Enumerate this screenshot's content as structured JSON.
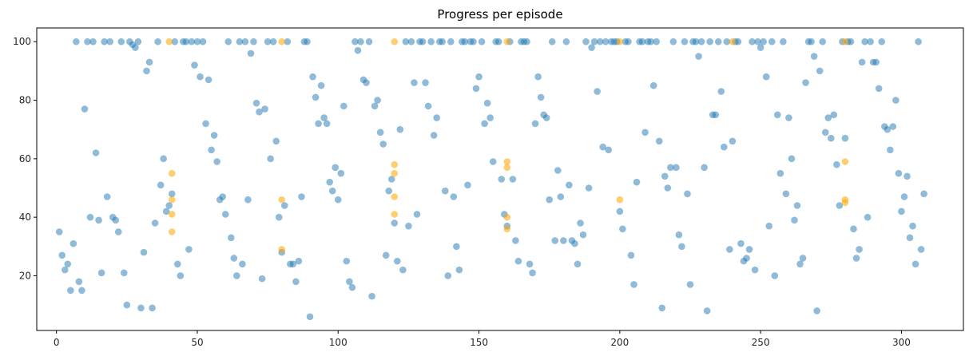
{
  "chart_data": {
    "type": "scatter",
    "title": "Progress per episode",
    "xlabel": "",
    "ylabel": "",
    "xlim": [
      -7,
      322
    ],
    "ylim": [
      1.3,
      104.7
    ],
    "xticks": [
      0,
      50,
      100,
      150,
      200,
      250,
      300
    ],
    "yticks": [
      20,
      40,
      60,
      80,
      100
    ],
    "grid": false,
    "legend": "none",
    "series": [
      {
        "color": "#1f77b4",
        "alpha": 0.5,
        "points": [
          [
            1,
            35
          ],
          [
            2,
            27
          ],
          [
            3,
            22
          ],
          [
            4,
            24
          ],
          [
            5,
            15
          ],
          [
            6,
            31
          ],
          [
            7,
            100
          ],
          [
            8,
            18
          ],
          [
            9,
            15
          ],
          [
            10,
            77
          ],
          [
            11,
            100
          ],
          [
            12,
            40
          ],
          [
            13,
            100
          ],
          [
            14,
            62
          ],
          [
            15,
            39
          ],
          [
            16,
            21
          ],
          [
            17,
            100
          ],
          [
            18,
            47
          ],
          [
            19,
            100
          ],
          [
            20,
            40
          ],
          [
            21,
            39
          ],
          [
            22,
            35
          ],
          [
            23,
            100
          ],
          [
            24,
            21
          ],
          [
            25,
            10
          ],
          [
            26,
            100
          ],
          [
            27,
            99
          ],
          [
            28,
            98
          ],
          [
            29,
            100
          ],
          [
            30,
            9
          ],
          [
            31,
            28
          ],
          [
            32,
            90
          ],
          [
            33,
            93
          ],
          [
            34,
            9
          ],
          [
            35,
            38
          ],
          [
            36,
            100
          ],
          [
            37,
            51
          ],
          [
            38,
            60
          ],
          [
            39,
            42
          ],
          [
            40,
            44
          ],
          [
            41,
            48
          ],
          [
            42,
            100
          ],
          [
            43,
            24
          ],
          [
            44,
            20
          ],
          [
            45,
            100
          ],
          [
            46,
            100
          ],
          [
            47,
            29
          ],
          [
            48,
            100
          ],
          [
            49,
            92
          ],
          [
            50,
            100
          ],
          [
            51,
            88
          ],
          [
            52,
            100
          ],
          [
            53,
            72
          ],
          [
            54,
            87
          ],
          [
            55,
            63
          ],
          [
            56,
            68
          ],
          [
            57,
            59
          ],
          [
            58,
            46
          ],
          [
            59,
            47
          ],
          [
            60,
            41
          ],
          [
            61,
            100
          ],
          [
            62,
            33
          ],
          [
            63,
            26
          ],
          [
            64,
            20
          ],
          [
            65,
            100
          ],
          [
            66,
            24
          ],
          [
            67,
            100
          ],
          [
            68,
            46
          ],
          [
            69,
            96
          ],
          [
            70,
            100
          ],
          [
            71,
            79
          ],
          [
            72,
            76
          ],
          [
            73,
            19
          ],
          [
            74,
            77
          ],
          [
            75,
            100
          ],
          [
            76,
            60
          ],
          [
            77,
            100
          ],
          [
            78,
            66
          ],
          [
            79,
            40
          ],
          [
            80,
            28
          ],
          [
            81,
            44
          ],
          [
            82,
            100
          ],
          [
            83,
            24
          ],
          [
            84,
            24
          ],
          [
            85,
            18
          ],
          [
            86,
            25
          ],
          [
            87,
            47
          ],
          [
            88,
            100
          ],
          [
            89,
            100
          ],
          [
            90,
            6
          ],
          [
            91,
            88
          ],
          [
            92,
            81
          ],
          [
            93,
            72
          ],
          [
            94,
            85
          ],
          [
            95,
            74
          ],
          [
            96,
            72
          ],
          [
            97,
            52
          ],
          [
            98,
            49
          ],
          [
            99,
            57
          ],
          [
            100,
            46
          ],
          [
            101,
            55
          ],
          [
            102,
            78
          ],
          [
            103,
            25
          ],
          [
            104,
            18
          ],
          [
            105,
            16
          ],
          [
            106,
            100
          ],
          [
            107,
            97
          ],
          [
            108,
            100
          ],
          [
            109,
            87
          ],
          [
            110,
            86
          ],
          [
            111,
            100
          ],
          [
            112,
            13
          ],
          [
            113,
            78
          ],
          [
            114,
            80
          ],
          [
            115,
            69
          ],
          [
            116,
            65
          ],
          [
            117,
            27
          ],
          [
            118,
            49
          ],
          [
            119,
            53
          ],
          [
            120,
            38
          ],
          [
            121,
            25
          ],
          [
            122,
            70
          ],
          [
            123,
            22
          ],
          [
            124,
            100
          ],
          [
            125,
            37
          ],
          [
            126,
            100
          ],
          [
            127,
            86
          ],
          [
            128,
            41
          ],
          [
            129,
            100
          ],
          [
            130,
            100
          ],
          [
            131,
            86
          ],
          [
            132,
            78
          ],
          [
            133,
            100
          ],
          [
            134,
            68
          ],
          [
            135,
            74
          ],
          [
            136,
            100
          ],
          [
            137,
            100
          ],
          [
            138,
            49
          ],
          [
            139,
            20
          ],
          [
            140,
            100
          ],
          [
            141,
            47
          ],
          [
            142,
            30
          ],
          [
            143,
            22
          ],
          [
            144,
            100
          ],
          [
            145,
            100
          ],
          [
            146,
            51
          ],
          [
            147,
            100
          ],
          [
            148,
            100
          ],
          [
            149,
            84
          ],
          [
            150,
            88
          ],
          [
            151,
            100
          ],
          [
            152,
            72
          ],
          [
            153,
            79
          ],
          [
            154,
            74
          ],
          [
            155,
            59
          ],
          [
            156,
            100
          ],
          [
            157,
            100
          ],
          [
            158,
            53
          ],
          [
            159,
            41
          ],
          [
            160,
            37
          ],
          [
            161,
            100
          ],
          [
            162,
            53
          ],
          [
            163,
            32
          ],
          [
            164,
            25
          ],
          [
            165,
            100
          ],
          [
            166,
            100
          ],
          [
            167,
            100
          ],
          [
            168,
            24
          ],
          [
            169,
            21
          ],
          [
            170,
            72
          ],
          [
            171,
            88
          ],
          [
            172,
            81
          ],
          [
            173,
            75
          ],
          [
            174,
            74
          ],
          [
            175,
            46
          ],
          [
            176,
            100
          ],
          [
            177,
            32
          ],
          [
            178,
            56
          ],
          [
            179,
            47
          ],
          [
            180,
            32
          ],
          [
            181,
            100
          ],
          [
            182,
            51
          ],
          [
            183,
            32
          ],
          [
            184,
            31
          ],
          [
            185,
            24
          ],
          [
            186,
            38
          ],
          [
            187,
            34
          ],
          [
            188,
            100
          ],
          [
            189,
            50
          ],
          [
            190,
            98
          ],
          [
            191,
            100
          ],
          [
            192,
            83
          ],
          [
            193,
            100
          ],
          [
            194,
            64
          ],
          [
            195,
            100
          ],
          [
            196,
            63
          ],
          [
            197,
            100
          ],
          [
            198,
            100
          ],
          [
            199,
            100
          ],
          [
            200,
            42
          ],
          [
            201,
            36
          ],
          [
            202,
            100
          ],
          [
            203,
            100
          ],
          [
            204,
            27
          ],
          [
            205,
            17
          ],
          [
            206,
            52
          ],
          [
            207,
            100
          ],
          [
            208,
            100
          ],
          [
            209,
            69
          ],
          [
            210,
            100
          ],
          [
            211,
            100
          ],
          [
            212,
            85
          ],
          [
            213,
            100
          ],
          [
            214,
            66
          ],
          [
            215,
            9
          ],
          [
            216,
            54
          ],
          [
            217,
            50
          ],
          [
            218,
            57
          ],
          [
            219,
            100
          ],
          [
            220,
            57
          ],
          [
            221,
            34
          ],
          [
            222,
            30
          ],
          [
            223,
            100
          ],
          [
            224,
            48
          ],
          [
            225,
            17
          ],
          [
            226,
            100
          ],
          [
            227,
            100
          ],
          [
            228,
            95
          ],
          [
            229,
            100
          ],
          [
            230,
            57
          ],
          [
            231,
            8
          ],
          [
            232,
            100
          ],
          [
            233,
            75
          ],
          [
            234,
            75
          ],
          [
            235,
            100
          ],
          [
            236,
            83
          ],
          [
            237,
            64
          ],
          [
            238,
            100
          ],
          [
            239,
            29
          ],
          [
            240,
            66
          ],
          [
            241,
            100
          ],
          [
            242,
            100
          ],
          [
            243,
            31
          ],
          [
            244,
            25
          ],
          [
            245,
            26
          ],
          [
            246,
            29
          ],
          [
            247,
            100
          ],
          [
            248,
            22
          ],
          [
            249,
            100
          ],
          [
            250,
            98
          ],
          [
            251,
            100
          ],
          [
            252,
            88
          ],
          [
            253,
            37
          ],
          [
            254,
            100
          ],
          [
            255,
            20
          ],
          [
            256,
            75
          ],
          [
            257,
            55
          ],
          [
            258,
            100
          ],
          [
            259,
            48
          ],
          [
            260,
            74
          ],
          [
            261,
            60
          ],
          [
            262,
            39
          ],
          [
            263,
            44
          ],
          [
            264,
            24
          ],
          [
            265,
            26
          ],
          [
            266,
            86
          ],
          [
            267,
            100
          ],
          [
            268,
            100
          ],
          [
            269,
            95
          ],
          [
            270,
            8
          ],
          [
            271,
            90
          ],
          [
            272,
            100
          ],
          [
            273,
            69
          ],
          [
            274,
            74
          ],
          [
            275,
            67
          ],
          [
            276,
            75
          ],
          [
            277,
            58
          ],
          [
            278,
            44
          ],
          [
            279,
            100
          ],
          [
            280,
            67
          ],
          [
            281,
            100
          ],
          [
            282,
            100
          ],
          [
            283,
            36
          ],
          [
            284,
            26
          ],
          [
            285,
            29
          ],
          [
            286,
            93
          ],
          [
            287,
            100
          ],
          [
            288,
            40
          ],
          [
            289,
            100
          ],
          [
            290,
            93
          ],
          [
            291,
            93
          ],
          [
            292,
            84
          ],
          [
            293,
            100
          ],
          [
            294,
            71
          ],
          [
            295,
            70
          ],
          [
            296,
            63
          ],
          [
            297,
            71
          ],
          [
            298,
            80
          ],
          [
            299,
            55
          ],
          [
            300,
            42
          ],
          [
            301,
            47
          ],
          [
            302,
            54
          ],
          [
            303,
            33
          ],
          [
            304,
            37
          ],
          [
            305,
            24
          ],
          [
            306,
            100
          ],
          [
            307,
            29
          ],
          [
            308,
            48
          ]
        ]
      },
      {
        "color": "#ffa500",
        "alpha": 0.55,
        "points": [
          [
            40,
            100
          ],
          [
            41,
            55
          ],
          [
            41,
            46
          ],
          [
            41,
            41
          ],
          [
            41,
            35
          ],
          [
            80,
            100
          ],
          [
            80,
            46
          ],
          [
            80,
            29
          ],
          [
            120,
            100
          ],
          [
            120,
            58
          ],
          [
            120,
            55
          ],
          [
            120,
            47
          ],
          [
            120,
            41
          ],
          [
            160,
            100
          ],
          [
            160,
            59
          ],
          [
            160,
            57
          ],
          [
            160,
            40
          ],
          [
            160,
            36
          ],
          [
            200,
            100
          ],
          [
            200,
            46
          ],
          [
            240,
            100
          ],
          [
            280,
            100
          ],
          [
            280,
            59
          ],
          [
            280,
            46
          ],
          [
            280,
            45
          ]
        ]
      }
    ]
  }
}
